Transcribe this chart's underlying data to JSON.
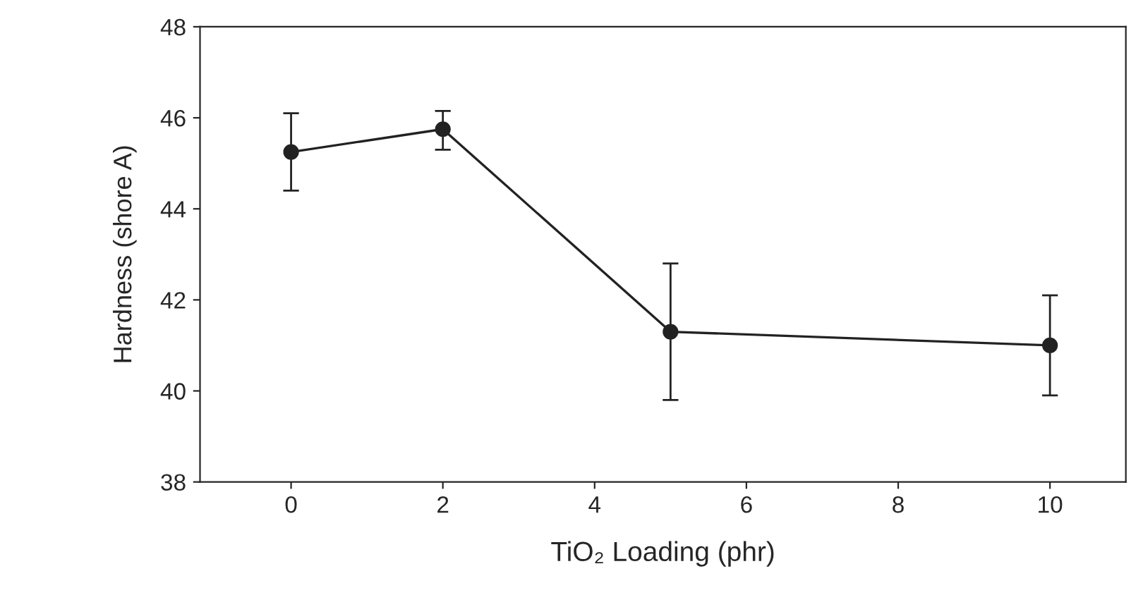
{
  "chart_data": {
    "type": "line",
    "xlabel": "TiO₂ Loading (phr)",
    "ylabel": "Hardness (shore A)",
    "x": [
      0,
      2,
      5,
      10
    ],
    "series": [
      {
        "color": "#222222",
        "values": [
          45.25,
          45.75,
          41.3,
          41.0
        ],
        "errors": [
          [
            44.4,
            46.1
          ],
          [
            45.3,
            46.15
          ],
          [
            39.8,
            42.8
          ],
          [
            39.9,
            42.1
          ]
        ]
      }
    ],
    "xlim": [
      -1.2,
      11
    ],
    "xticks": [
      0,
      2,
      4,
      6,
      8,
      10
    ],
    "ylim": [
      38,
      48
    ],
    "yticks": [
      38,
      40,
      42,
      44,
      46,
      48
    ],
    "marker": "circle",
    "line_style": "solid",
    "grid": false,
    "legend": false
  }
}
